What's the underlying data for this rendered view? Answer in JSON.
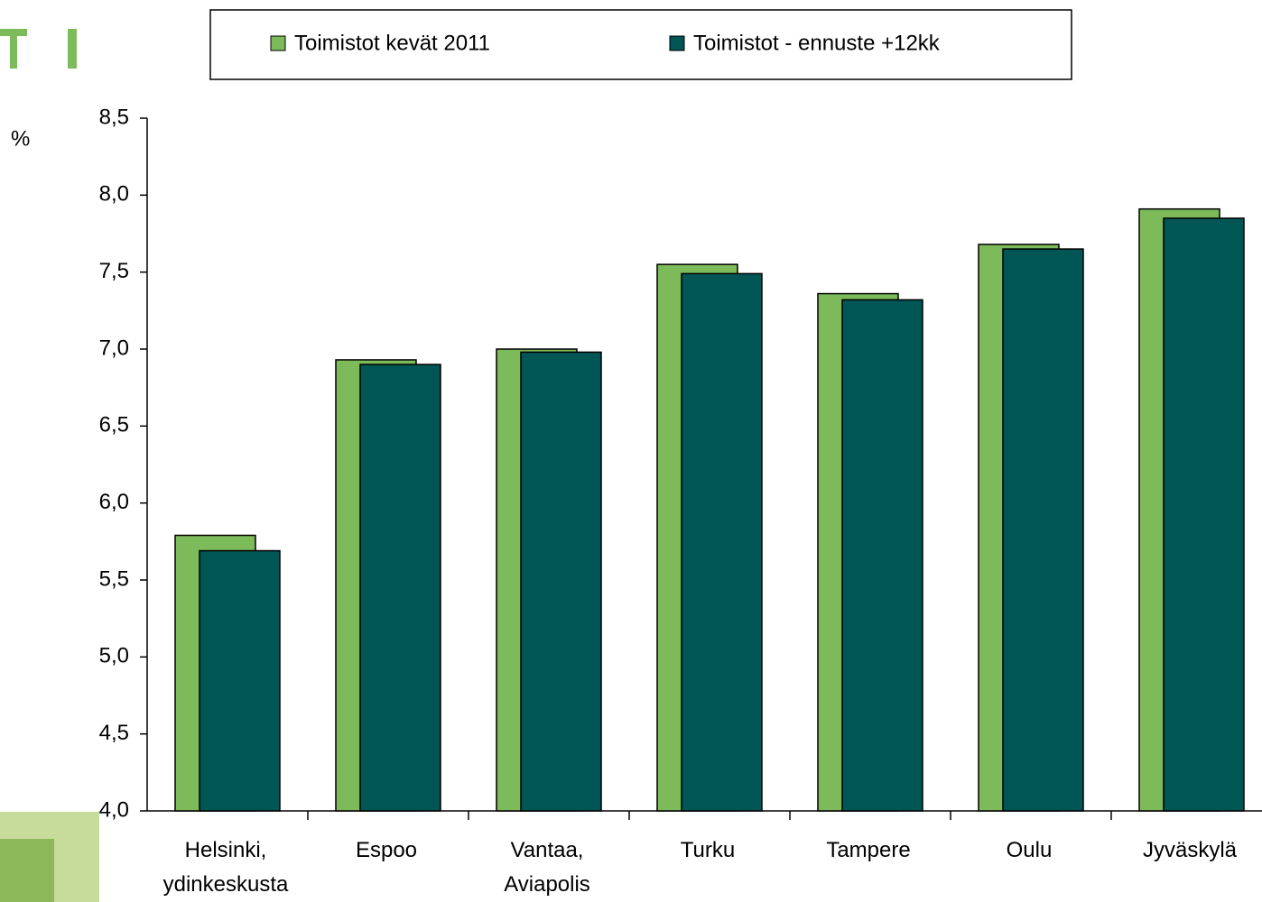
{
  "chart_data": {
    "type": "bar",
    "y_label": "%",
    "categories": [
      "Helsinki, ydinkeskusta",
      "Espoo",
      "Vantaa, Aviapolis",
      "Turku",
      "Tampere",
      "Oulu",
      "Jyväskylä"
    ],
    "series": [
      {
        "name": "Toimistot kevät 2011",
        "color": "#7dba5a",
        "values": [
          5.79,
          6.93,
          7.0,
          7.55,
          7.36,
          7.68,
          7.91
        ]
      },
      {
        "name": "Toimistot - ennuste +12kk",
        "color": "#005555",
        "values": [
          5.69,
          6.9,
          6.98,
          7.49,
          7.32,
          7.65,
          7.85
        ]
      }
    ],
    "ylim": [
      4.0,
      8.5
    ],
    "yticks": [
      {
        "value": 4.0,
        "label": "4,0"
      },
      {
        "value": 4.5,
        "label": "4,5"
      },
      {
        "value": 5.0,
        "label": "5,0"
      },
      {
        "value": 5.5,
        "label": "5,5"
      },
      {
        "value": 6.0,
        "label": "6,0"
      },
      {
        "value": 6.5,
        "label": "6,5"
      },
      {
        "value": 7.0,
        "label": "7,0"
      },
      {
        "value": 7.5,
        "label": "7,5"
      },
      {
        "value": 8.0,
        "label": "8,0"
      },
      {
        "value": 8.5,
        "label": "8,5"
      }
    ],
    "grid": false
  }
}
